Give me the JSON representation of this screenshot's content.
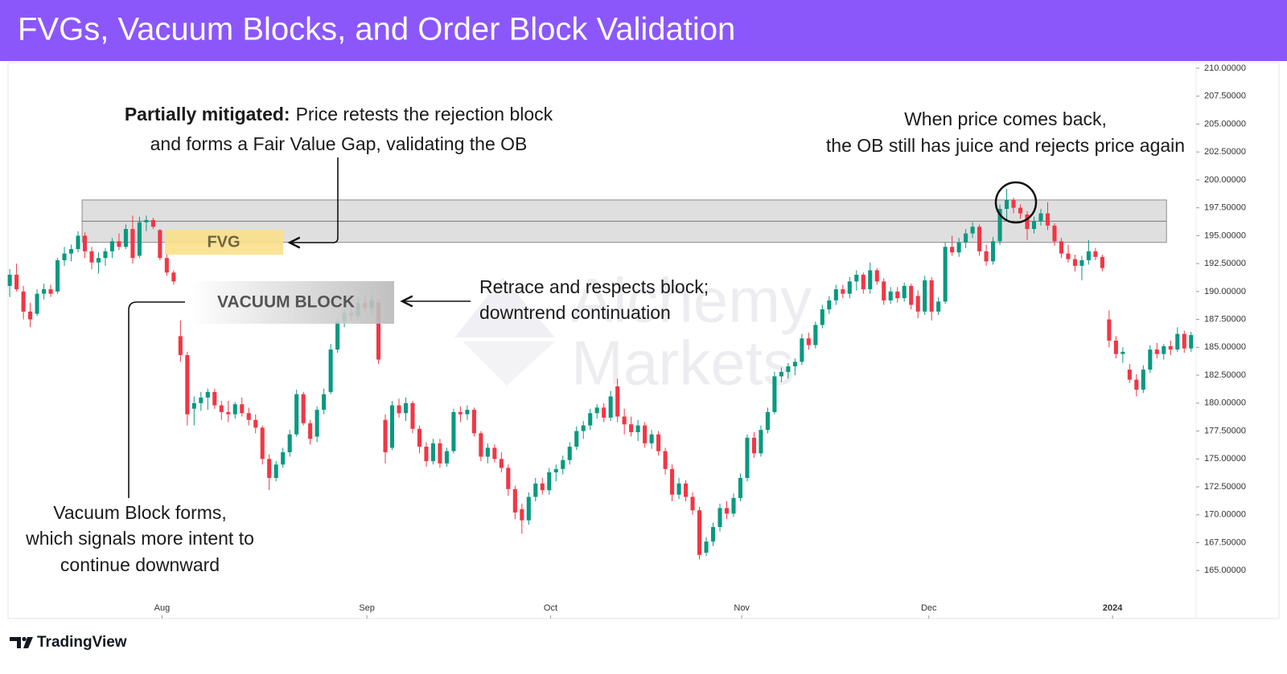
{
  "header": {
    "title": "FVGs, Vacuum Blocks, and Order Block Validation"
  },
  "chart_data": {
    "type": "candlestick",
    "up_color": "#089981",
    "down_color": "#f23645",
    "open": [
      190.5,
      191.5,
      190,
      188.2,
      188,
      189.8,
      190.2,
      190,
      192.8,
      193.4,
      193.8,
      195,
      193.6,
      192.6,
      193,
      193.6,
      194.5,
      194,
      195.6,
      193.2,
      196.2,
      196.4,
      195.5,
      193,
      191.7,
      186,
      184.3,
      179.5,
      180,
      180.5,
      181,
      179.8,
      179.2,
      179,
      179.9,
      179.1,
      178.5,
      177.8,
      175,
      173.3,
      174.5,
      175.6,
      177.2,
      180.8,
      178.2,
      177,
      179.4,
      181,
      184.8,
      187.3,
      188.1,
      187.8,
      189,
      188.5,
      189,
      178.5,
      176,
      179.8,
      179.1,
      180,
      177.7,
      176.1,
      174.8,
      176.4,
      174.6,
      175.7,
      179.2,
      179,
      179.4,
      177.3,
      175.2,
      176,
      175,
      174.2,
      172.3,
      170.5,
      169.5,
      171.6,
      172.8,
      172.2,
      173.8,
      174.1,
      174.9,
      176.1,
      177.5,
      178,
      179.1,
      179.6,
      178.7,
      181.5,
      178.8,
      178.1,
      177.4,
      178,
      176.4,
      177.2,
      175.7,
      174.1,
      171.8,
      172.8,
      171.6,
      170.4,
      166.6,
      167.6,
      168.9,
      170.6,
      170.1,
      171.5,
      173.3,
      176.9,
      175.5,
      177.6,
      179.2,
      182.4,
      182.8,
      183.3,
      183.7,
      185.8,
      185.2,
      187,
      188.4,
      189.2,
      190.2,
      189.8,
      190.9,
      191.5,
      190.2,
      191.9,
      190.9,
      189.2,
      190,
      189.4,
      190.5,
      189.6,
      188.2,
      191,
      188.2,
      189.1,
      194,
      193.5,
      194.4,
      195.2,
      195.8,
      193.6,
      192.7,
      194.5,
      197.4,
      198.2,
      197.5,
      196.9,
      195.6,
      196.3,
      197,
      195.9,
      194.5,
      193.4,
      192.9,
      192.3,
      192.8,
      193.6,
      193.1,
      187.5,
      185.6,
      184.4,
      183,
      182.1,
      181.2,
      183,
      184.8,
      184.4,
      185.1,
      184.8,
      186.2,
      184.9
    ],
    "high": [
      192,
      192.5,
      190.5,
      189,
      190.2,
      190.7,
      190.6,
      193,
      194,
      194.2,
      195.4,
      195.3,
      194,
      193.5,
      193.9,
      194.8,
      195.2,
      196,
      196.8,
      196.7,
      196.8,
      196.6,
      195.6,
      193.4,
      191.9,
      187.4,
      184.6,
      180.6,
      181,
      181.3,
      181.3,
      180.2,
      180.2,
      180.1,
      180.5,
      179.6,
      179,
      178,
      175.4,
      174.8,
      176,
      177.6,
      181.2,
      181,
      178.5,
      179.7,
      181.3,
      185.3,
      187.7,
      188.4,
      188.5,
      189.4,
      189.6,
      189.7,
      189.3,
      179,
      180.2,
      180.4,
      180.5,
      180.2,
      178,
      176.5,
      176.8,
      176.8,
      176,
      179.5,
      179.7,
      179.8,
      179.6,
      177.5,
      176.4,
      176.3,
      175.6,
      174.5,
      172.6,
      171,
      172,
      173.3,
      173.3,
      174.2,
      174.5,
      175.3,
      176.5,
      177.9,
      178.4,
      179.5,
      179.9,
      180,
      181.1,
      182.2,
      179.5,
      178.8,
      178.5,
      178.3,
      177.6,
      177.5,
      176,
      174.5,
      173.3,
      173.1,
      172,
      170.7,
      168,
      169.3,
      171,
      171.2,
      171.9,
      173.7,
      177.2,
      177.4,
      178,
      179.6,
      182.8,
      183.2,
      183.6,
      184,
      186.2,
      186.3,
      187.3,
      188.8,
      189.6,
      190.6,
      190.6,
      191.3,
      191.9,
      191.7,
      192.6,
      192.1,
      191.2,
      190.4,
      190.4,
      190.8,
      190.7,
      190.1,
      191.4,
      191.3,
      189.5,
      194.4,
      195,
      194.8,
      195.6,
      196.2,
      196,
      194.2,
      194.9,
      197.8,
      199.2,
      198.4,
      197.8,
      197.2,
      196.7,
      197.4,
      198,
      196.1,
      194.8,
      194.2,
      193.3,
      193.2,
      194.6,
      193.9,
      193.3,
      188.3,
      186,
      185,
      183.5,
      182.6,
      183.4,
      185.2,
      185.4,
      185.3,
      185.6,
      186.8,
      186.5,
      186.4
    ],
    "low": [
      189.5,
      190,
      187.5,
      186.8,
      187.8,
      189.3,
      189.5,
      189.8,
      192.3,
      192.7,
      193.5,
      193,
      192,
      191.6,
      192.3,
      193,
      193.7,
      193.8,
      192.5,
      193,
      195.4,
      195.6,
      192.8,
      191.4,
      190.6,
      183.7,
      178,
      178,
      179.3,
      179.4,
      179.5,
      178.5,
      178.3,
      178.6,
      178.8,
      178,
      177.3,
      174.5,
      172.2,
      173,
      174.2,
      175.2,
      177,
      178,
      176.3,
      176.5,
      179,
      180.8,
      184.5,
      186.8,
      187.4,
      187.5,
      188.2,
      188,
      183.5,
      174.6,
      175.8,
      178.7,
      178.4,
      177.3,
      175.5,
      174.3,
      174.5,
      174.2,
      174.3,
      175.5,
      178.3,
      178.5,
      177,
      174.8,
      174.6,
      174.7,
      173.8,
      171.7,
      169.6,
      168.3,
      169.1,
      171.2,
      171.8,
      171.8,
      173,
      173.6,
      174.5,
      175.8,
      176.8,
      177.6,
      178.6,
      178.3,
      178.4,
      178.3,
      177.2,
      177,
      176.6,
      176,
      175.9,
      175.3,
      173.6,
      171.2,
      171.4,
      171.2,
      170,
      166,
      166.3,
      167.2,
      168.5,
      169.6,
      169.8,
      171.2,
      173,
      175.1,
      175.2,
      177.3,
      179,
      181.9,
      182.2,
      182.5,
      183.4,
      184.8,
      184.9,
      186.7,
      188,
      188.8,
      189.4,
      189.4,
      190.1,
      189.8,
      189.8,
      190.6,
      188.8,
      188.9,
      189,
      189.1,
      188.4,
      187.6,
      187.9,
      187.4,
      187.9,
      188.9,
      193.2,
      193.1,
      193.9,
      194.8,
      193.2,
      192.3,
      192.4,
      194.2,
      196.3,
      197,
      196.5,
      194.6,
      195.2,
      195.9,
      195.5,
      194.1,
      193,
      192.6,
      191.8,
      191,
      192.4,
      192.8,
      191.8,
      185,
      184,
      183.6,
      181.8,
      180.6,
      180.9,
      182.7,
      184,
      183.9,
      184.3,
      184.6,
      184.5,
      184.6
    ],
    "close": [
      191.5,
      190.2,
      188.2,
      187.5,
      189.8,
      190.2,
      189.8,
      192.8,
      193.4,
      193.8,
      195,
      193.6,
      192.6,
      193,
      193.6,
      194.5,
      194,
      195.6,
      193,
      196.2,
      196.4,
      195.8,
      193,
      191.7,
      190.9,
      184.3,
      179,
      180,
      180.5,
      181,
      179.8,
      179.2,
      179,
      179.9,
      179.1,
      178.5,
      177.8,
      175,
      173.3,
      174.5,
      175.6,
      177.2,
      180.8,
      178.2,
      176.8,
      179.4,
      180.8,
      184.8,
      187.3,
      188.1,
      187.8,
      189,
      188.5,
      189.2,
      183.9,
      175.6,
      179.8,
      179.1,
      180,
      177.7,
      176.1,
      174.8,
      176.4,
      174.6,
      175.7,
      179.2,
      179,
      179.4,
      177.3,
      175.2,
      176,
      175,
      174.2,
      172.3,
      170.2,
      169.5,
      171.6,
      172.8,
      172.2,
      173.8,
      174.1,
      174.9,
      176.1,
      177.5,
      178,
      179.1,
      179.6,
      178.7,
      180.6,
      178.8,
      178.1,
      177.4,
      178,
      176.4,
      177.2,
      175.7,
      174.1,
      171.8,
      172.8,
      171.6,
      170.4,
      166.4,
      167.6,
      168.9,
      170.6,
      170.1,
      171.5,
      173.3,
      176.9,
      175.5,
      177.6,
      179.2,
      182.4,
      182.8,
      183.3,
      183.7,
      185.8,
      185.2,
      187,
      188.4,
      189.2,
      190.2,
      189.8,
      190.9,
      191.5,
      190.2,
      191.9,
      190.9,
      189.2,
      190,
      189.4,
      190.5,
      188.8,
      188.2,
      191,
      188.2,
      189.1,
      194,
      193.5,
      194.4,
      195.2,
      195.8,
      193.6,
      192.7,
      194.5,
      197.4,
      198.2,
      197.5,
      197,
      195.6,
      196.3,
      197,
      195.9,
      194.5,
      193.4,
      192.9,
      192.3,
      192.8,
      193.6,
      193.1,
      192.1,
      185.6,
      184.4,
      184.6,
      182.1,
      181.2,
      183,
      184.8,
      184.4,
      185.1,
      184.8,
      186.2,
      184.9,
      186.1
    ],
    "xlim": [
      -0.25,
      173.5
    ],
    "xticks": [
      {
        "value": 22.3,
        "label": "Aug"
      },
      {
        "value": 52.3,
        "label": "Sep"
      },
      {
        "value": 79.2,
        "label": "Oct"
      },
      {
        "value": 107.2,
        "label": "Nov"
      },
      {
        "value": 134.6,
        "label": "Dec"
      },
      {
        "value": 161.5,
        "label": "2024"
      }
    ],
    "ylim": [
      160.7,
      210.5
    ],
    "yticks": [
      {
        "value": 210,
        "label": "210.00000"
      },
      {
        "value": 207.5,
        "label": "207.50000"
      },
      {
        "value": 205,
        "label": "205.00000"
      },
      {
        "value": 202.5,
        "label": "202.50000"
      },
      {
        "value": 200,
        "label": "200.00000"
      },
      {
        "value": 197.5,
        "label": "197.50000"
      },
      {
        "value": 195,
        "label": "195.00000"
      },
      {
        "value": 192.5,
        "label": "192.50000"
      },
      {
        "value": 190,
        "label": "190.00000"
      },
      {
        "value": 187.5,
        "label": "187.50000"
      },
      {
        "value": 185,
        "label": "185.00000"
      },
      {
        "value": 182.5,
        "label": "182.50000"
      },
      {
        "value": 180,
        "label": "180.00000"
      },
      {
        "value": 177.5,
        "label": "177.50000"
      },
      {
        "value": 175,
        "label": "175.00000"
      },
      {
        "value": 172.5,
        "label": "172.50000"
      },
      {
        "value": 170,
        "label": "170.00000"
      },
      {
        "value": 167.5,
        "label": "167.50000"
      },
      {
        "value": 165,
        "label": "165.00000"
      }
    ],
    "order_block": {
      "from": 10.6,
      "to": 169.4,
      "low": 194.4,
      "high": 198.2,
      "mid": 196.3
    },
    "annotations": {
      "mitigated": {
        "bold": "Partially mitigated:",
        "lines": [
          "Price retests the rejection block",
          "and forms a Fair Value Gap, validating the OB"
        ]
      },
      "rejects": {
        "lines": [
          "When price comes back,",
          "the OB still has juice and rejects price again"
        ]
      },
      "retrace": {
        "lines": [
          "Retrace and respects block;",
          "downtrend continuation"
        ]
      },
      "vacuum": {
        "lines": [
          "Vacuum Block forms,",
          "which signals more intent to",
          "continue downward"
        ]
      },
      "fvg_box": "FVG",
      "vacuum_box": "VACUUM BLOCK"
    }
  },
  "watermark": [
    "Alchemy",
    "Markets"
  ],
  "footer": {
    "brand": "TradingView"
  }
}
